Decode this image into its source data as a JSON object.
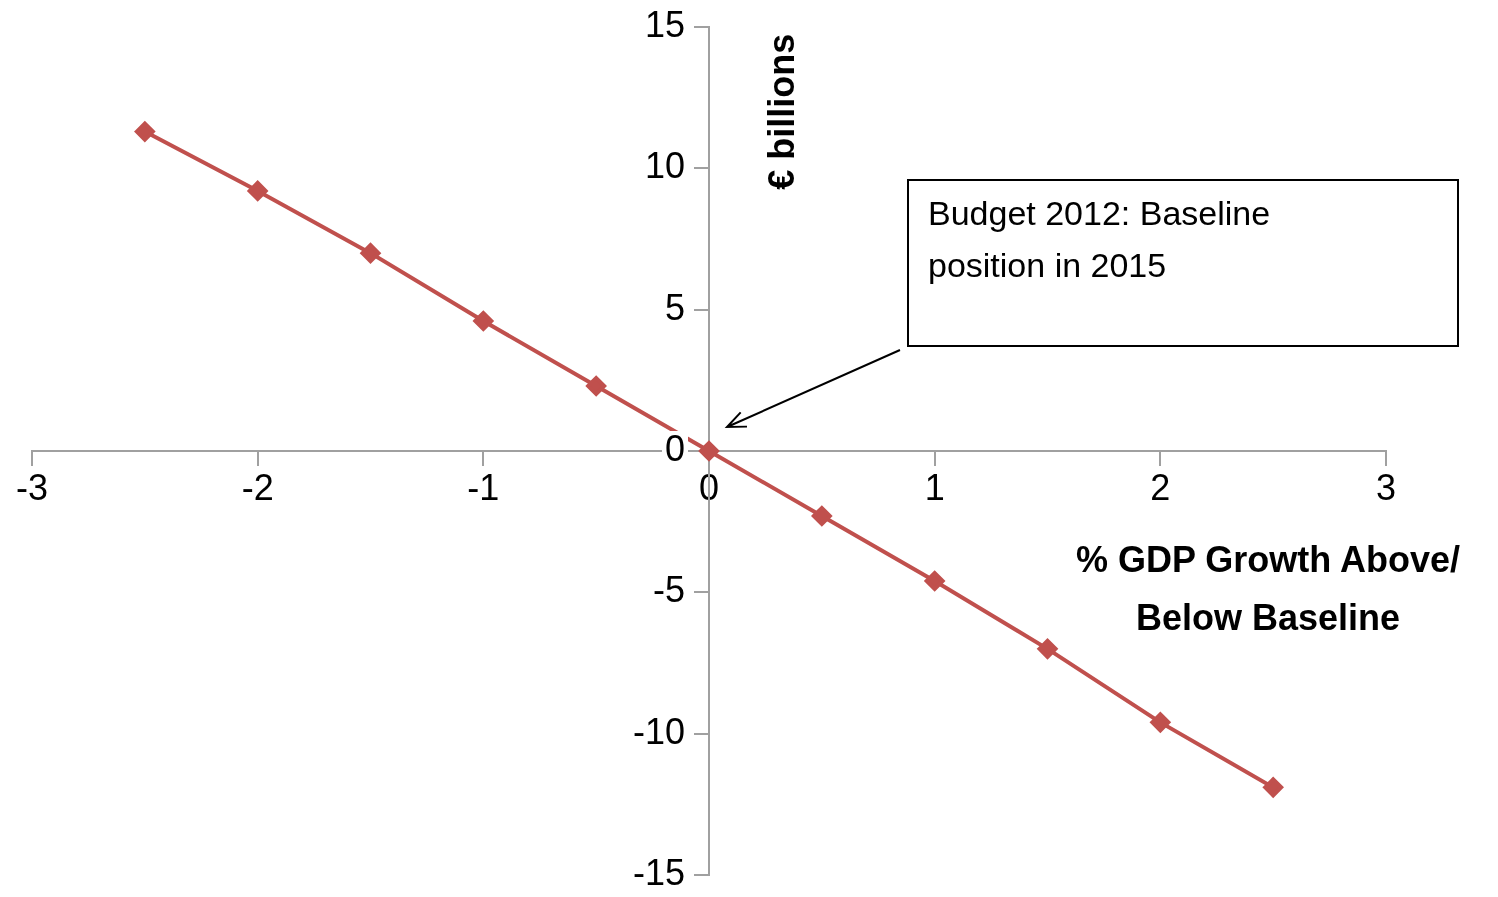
{
  "chart_data": {
    "type": "line",
    "xlabel": "% GDP Growth Above/ Below Baseline",
    "ylabel": "€ billions",
    "x": [
      -2.5,
      -2,
      -1.5,
      -1,
      -0.5,
      0,
      0.5,
      1,
      1.5,
      2,
      2.5
    ],
    "series": [
      {
        "color": "#c0504d",
        "values": [
          11.3,
          9.2,
          7.0,
          4.6,
          2.3,
          0,
          -2.3,
          -4.6,
          -7.0,
          -9.6,
          -11.9
        ]
      }
    ],
    "xlim": [
      -3,
      3
    ],
    "xticks": [
      -3,
      -2,
      -1,
      0,
      1,
      2,
      3
    ],
    "ylim": [
      -15,
      15
    ],
    "yticks": [
      -15,
      -10,
      -5,
      0,
      5,
      10,
      15
    ],
    "marker": "diamond",
    "line_style": "solid",
    "legend": false,
    "annotations": [
      "Budget 2012: Baseline position in 2015"
    ]
  }
}
